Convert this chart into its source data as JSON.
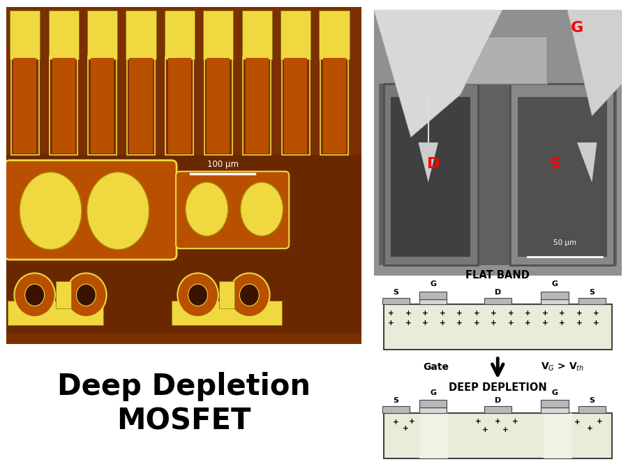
{
  "title_text": "Deep Depletion\nMOSFET",
  "title_fontsize": 30,
  "bg_color": "#ffffff",
  "flat_band_title": "FLAT BAND",
  "deep_depletion_title": "DEEP DEPLETION",
  "arrow_label_left": "Gate",
  "arrow_label_right": "V$_G$ > V$_{th}$",
  "sem_scale_label": "50 μm",
  "opt_scale_label": "100 μm",
  "semiconductor_color": "#e8ecd8",
  "gate_color": "#b8b8b8",
  "gate_oxide_color": "#d8d8d8",
  "outline_color": "#444444",
  "gold": "#f0d840",
  "orange_bg": "#b85000",
  "dark_bg": "#3a1200",
  "med_brown": "#7a3500"
}
